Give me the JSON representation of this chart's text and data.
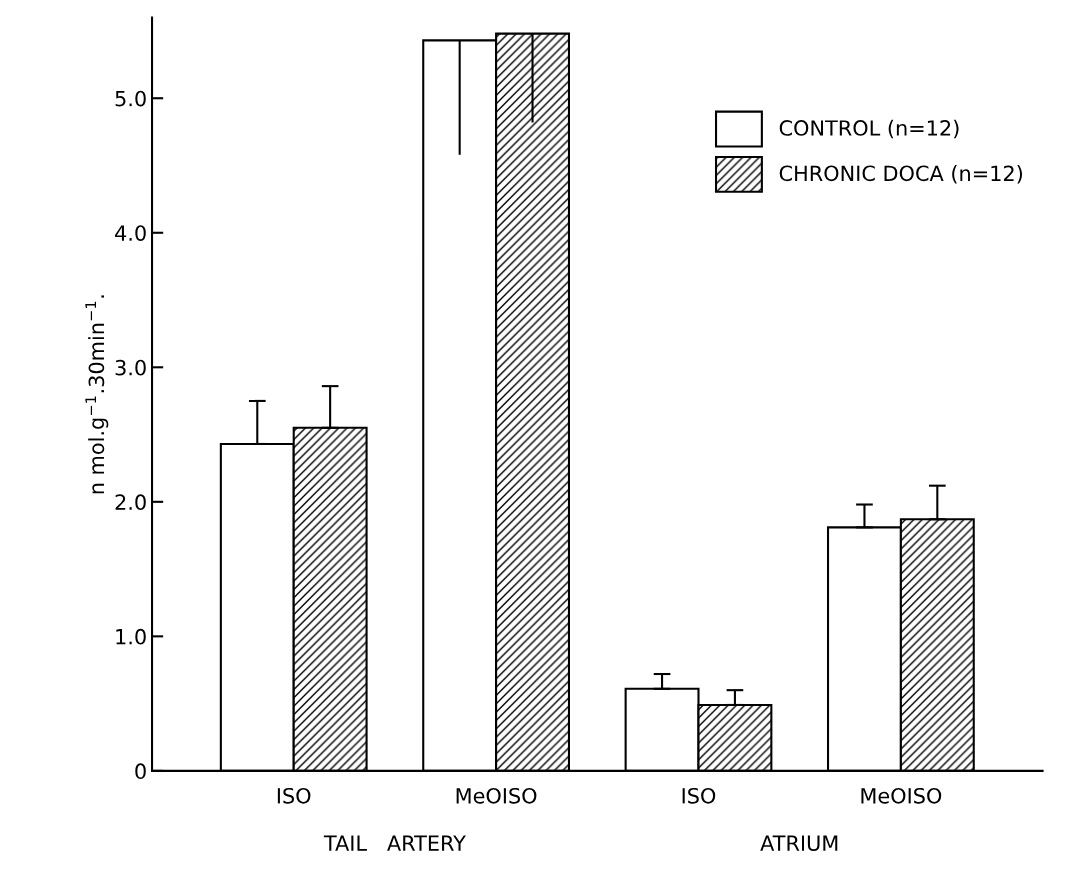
{
  "chart_data": {
    "type": "bar",
    "ylabel": "n mol.g$^{−1}$.30min$^{−1}$.",
    "categories": [
      "ISO",
      "MeOISO",
      "ISO",
      "MeOISO"
    ],
    "series": [
      {
        "name": "CONTROL (n=12)",
        "color": "#ffffff",
        "values": [
          2.43,
          5.43,
          0.61,
          1.81
        ],
        "errors": [
          [
            2.43,
            2.75
          ],
          [
            4.58,
            5.43
          ],
          [
            0.61,
            0.72
          ],
          [
            1.81,
            1.98
          ]
        ]
      },
      {
        "name": "CHRONIC DOCA (n=12)",
        "color": "#000000",
        "values": [
          2.55,
          5.48,
          0.49,
          1.87
        ],
        "errors": [
          [
            2.55,
            2.86
          ],
          [
            4.82,
            5.48
          ],
          [
            0.49,
            0.6
          ],
          [
            1.87,
            2.12
          ]
        ]
      }
    ],
    "ylim": [
      0,
      5.6
    ],
    "yticks": [
      0,
      {
        "value": 1,
        "label": "1.0"
      },
      {
        "value": 2,
        "label": "2.0"
      },
      {
        "value": 3,
        "label": "3.0"
      },
      {
        "value": 4,
        "label": "4.0"
      },
      {
        "value": 5,
        "label": "5.0"
      }
    ],
    "annotations": [
      "TAIL   ARTERY",
      "ATRIUM"
    ],
    "legend": "top right",
    "grid": false
  }
}
